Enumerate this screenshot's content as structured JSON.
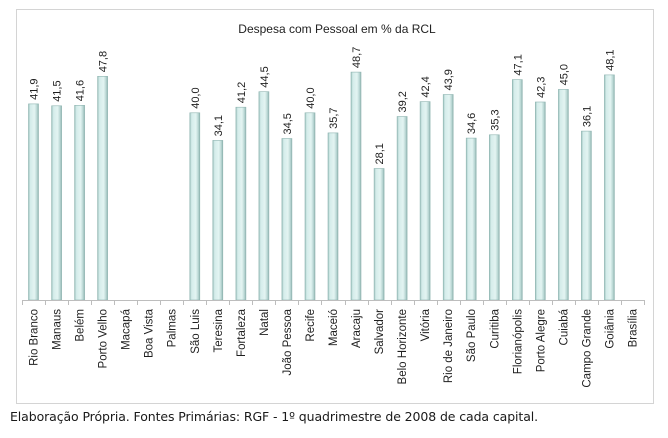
{
  "chart_data": {
    "type": "bar",
    "title": "Despesa com Pessoal em % da RCL",
    "xlabel": "",
    "ylabel": "",
    "ylim": [
      0,
      52
    ],
    "grid": false,
    "legend": "none",
    "categories": [
      "Rio Branco",
      "Manaus",
      "Belém",
      "Porto Velho",
      "Macapá",
      "Boa Vista",
      "Palmas",
      "São Luis",
      "Teresina",
      "Fortaleza",
      "Natal",
      "João Pessoa",
      "Recife",
      "Maceió",
      "Aracaju",
      "Salvador",
      "Belo Horizonte",
      "Vitória",
      "Rio de Janeiro",
      "São Paulo",
      "Curitiba",
      "Florianópolis",
      "Porto Alegre",
      "Cuiabá",
      "Campo Grande",
      "Goiânia",
      "Brasília"
    ],
    "values": [
      41.9,
      41.5,
      41.6,
      47.8,
      null,
      null,
      null,
      40.0,
      34.1,
      41.2,
      44.5,
      34.5,
      40.0,
      35.7,
      48.7,
      28.1,
      39.2,
      42.4,
      43.9,
      34.6,
      35.3,
      47.1,
      42.3,
      45.0,
      36.1,
      48.1,
      null
    ],
    "data_labels": [
      "41,9",
      "41,5",
      "41,6",
      "47,8",
      "",
      "",
      "",
      "40,0",
      "34,1",
      "41,2",
      "44,5",
      "34,5",
      "40,0",
      "35,7",
      "48,7",
      "28,1",
      "39,2",
      "42,4",
      "43,9",
      "34,6",
      "35,3",
      "47,1",
      "42,3",
      "45,0",
      "36,1",
      "48,1",
      ""
    ],
    "colors": {
      "bar_fill": "#cfe9e7",
      "bar_edge": "#8fb5b1",
      "axis": "#bdbdbd"
    }
  },
  "caption": "Elaboração Própria. Fontes Primárias: RGF - 1º quadrimestre de 2008 de cada capital."
}
